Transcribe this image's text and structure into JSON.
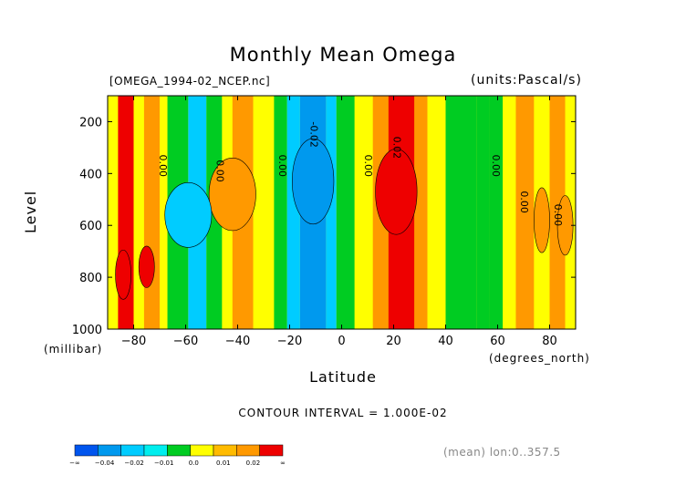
{
  "chart_data": {
    "type": "heatmap",
    "title": "Monthly Mean Omega",
    "file_label": "[OMEGA_1994-02_NCEP.nc]",
    "units": "(units:Pascal/s)",
    "xlabel": "Latitude",
    "x_unit": "(degrees_north)",
    "ylabel": "Level",
    "y_unit": "(millibar)",
    "xlim": [
      -90,
      90
    ],
    "ylim": [
      1000,
      100
    ],
    "x_ticks": [
      -80,
      -60,
      -40,
      -20,
      0,
      20,
      40,
      60,
      80
    ],
    "y_ticks": [
      200,
      400,
      600,
      800,
      1000
    ],
    "contour_interval": "CONTOUR INTERVAL = 1.000E-02",
    "region_note": "(mean) lon:0..357.5",
    "contour_labels": [
      {
        "text": "0.00",
        "lat": -70,
        "level": 370
      },
      {
        "text": "0.00",
        "lat": -48,
        "level": 390
      },
      {
        "text": "0.00",
        "lat": -24,
        "level": 370
      },
      {
        "text": "-0.02",
        "lat": -12,
        "level": 250
      },
      {
        "text": "0.00",
        "lat": 9,
        "level": 370
      },
      {
        "text": "0.02",
        "lat": 20,
        "level": 300
      },
      {
        "text": "0.00",
        "lat": 58,
        "level": 370
      },
      {
        "text": "0.00",
        "lat": 69,
        "level": 510
      },
      {
        "text": "0.00",
        "lat": 82,
        "level": 560
      }
    ],
    "colorbar": {
      "colors": [
        "#0055ee",
        "#0099ee",
        "#00ccff",
        "#00eeee",
        "#00cc22",
        "#ffff00",
        "#ffbb00",
        "#ff9900",
        "#ee0000"
      ],
      "labels": [
        "-∞",
        "-0.04",
        "-0.02",
        "-0.01",
        "0.0",
        "0.01",
        "0.02",
        "∞"
      ]
    },
    "bands": [
      {
        "lat": -90,
        "value": 0.005
      },
      {
        "lat": -86,
        "value": 0.02
      },
      {
        "lat": -80,
        "value": 0.005
      },
      {
        "lat": -76,
        "value": 0.015
      },
      {
        "lat": -70,
        "value": 0.005
      },
      {
        "lat": -67,
        "value": -0.005
      },
      {
        "lat": -59,
        "value": -0.015
      },
      {
        "lat": -52,
        "value": -0.005
      },
      {
        "lat": -46,
        "value": 0.005
      },
      {
        "lat": -42,
        "value": 0.012
      },
      {
        "lat": -34,
        "value": 0.005
      },
      {
        "lat": -26,
        "value": -0.005
      },
      {
        "lat": -21,
        "value": -0.015
      },
      {
        "lat": -16,
        "value": -0.025
      },
      {
        "lat": -6,
        "value": -0.015
      },
      {
        "lat": -2,
        "value": -0.005
      },
      {
        "lat": 5,
        "value": 0.005
      },
      {
        "lat": 12,
        "value": 0.012
      },
      {
        "lat": 18,
        "value": 0.025
      },
      {
        "lat": 28,
        "value": 0.012
      },
      {
        "lat": 33,
        "value": 0.005
      },
      {
        "lat": 40,
        "value": -0.005
      },
      {
        "lat": 52,
        "value": -0.009
      },
      {
        "lat": 57,
        "value": -0.005
      },
      {
        "lat": 62,
        "value": 0.005
      },
      {
        "lat": 67,
        "value": 0.012
      },
      {
        "lat": 74,
        "value": 0.005
      },
      {
        "lat": 80,
        "value": 0.012
      },
      {
        "lat": 86,
        "value": 0.005
      }
    ]
  }
}
